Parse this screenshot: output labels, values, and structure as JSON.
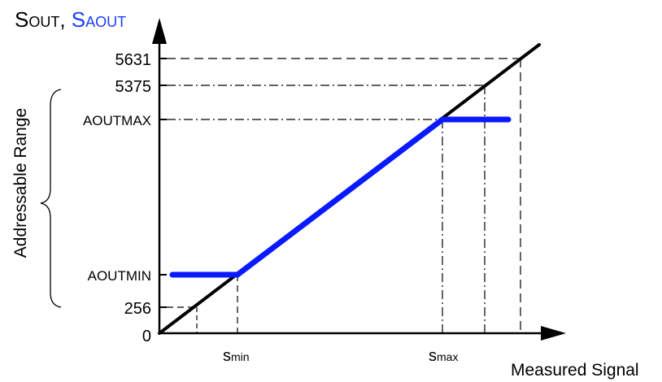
{
  "y_axis_title": {
    "s_part": "S",
    "s_sub": "OUT",
    "separator": ", ",
    "sa_part": "S",
    "sa_sub": "AOUT",
    "sa_color": "#1a3cff"
  },
  "y_ticks": {
    "v5631": "5631",
    "v5375": "5375",
    "aoutmax": "AOUTMAX",
    "aoutmin": "AOUTMIN",
    "v256": "256",
    "zero": "0"
  },
  "x_ticks": {
    "smin_s": "s",
    "smin_sub": "min",
    "smax_s": "s",
    "smax_sub": "max"
  },
  "x_axis_title": "Measured Signal",
  "range_label": "Addressable Range",
  "colors": {
    "ideal_line": "#000000",
    "output_curve": "#0a1aff",
    "axes": "#000000"
  }
}
